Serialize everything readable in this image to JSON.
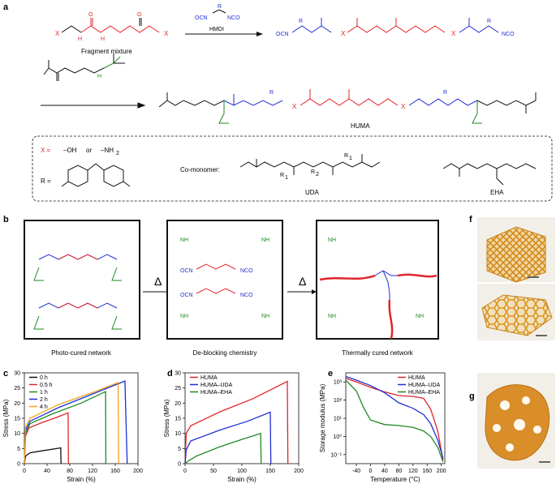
{
  "panel_a": {
    "letter": "a",
    "reagent": "HMDI",
    "reagent_formula": {
      "r": "R",
      "ocn": "OCN",
      "nco": "NCO"
    },
    "fragment_label": "Fragment mixture",
    "x": "X",
    "ocn": "OCN",
    "nco": "NCO",
    "r": "R",
    "n": "N",
    "h": "H",
    "o": "O",
    "huma_label": "HUMA",
    "legend": {
      "x_def_left": "X =",
      "x_def_oh": "–OH",
      "x_def_or": "or",
      "x_def_nh2": "–NH",
      "x_def_nh2_sub": "2",
      "r_def": "R =",
      "comonomer": "Co-monomer:",
      "uda": "UDA",
      "eha": "EHA",
      "r1": "R",
      "r1_sub": "1",
      "r2": "R",
      "r2_sub": "2"
    }
  },
  "panel_b": {
    "letter": "b",
    "captions": [
      "Photo-cured network",
      "De-blocking chemistry",
      "Thermally cured network"
    ],
    "delta": "Δ",
    "nh": "NH",
    "hn": "HN",
    "ocn": "OCN",
    "nco": "NCO"
  },
  "panel_f": {
    "letter": "f"
  },
  "panel_g": {
    "letter": "g"
  },
  "panel_c": {
    "letter": "c",
    "chart_data": {
      "type": "line",
      "xlabel": "Strain (%)",
      "ylabel": "Stress (MPa)",
      "xlim": [
        0,
        200
      ],
      "ylim": [
        0,
        30
      ],
      "xticks": [
        0,
        40,
        80,
        120,
        160,
        200
      ],
      "yticks": [
        0,
        5,
        10,
        15,
        20,
        25,
        30
      ],
      "legend_position": "top-left",
      "series": [
        {
          "name": "0 h",
          "color": "#111111",
          "x": [
            0,
            2,
            10,
            30,
            60,
            64,
            64.5
          ],
          "y": [
            0,
            2.5,
            3.6,
            4.2,
            5.1,
            5.2,
            0
          ]
        },
        {
          "name": "0.5 h",
          "color": "#e0252a",
          "x": [
            0,
            2,
            8,
            30,
            60,
            77,
            77.5
          ],
          "y": [
            0,
            9,
            11.8,
            13.5,
            15.5,
            16.8,
            0
          ]
        },
        {
          "name": "1 h",
          "color": "#1d8a22",
          "x": [
            0,
            2,
            10,
            50,
            100,
            143,
            143.5
          ],
          "y": [
            0,
            10,
            13.2,
            16.5,
            20,
            23.8,
            0
          ]
        },
        {
          "name": "2 h",
          "color": "#1f2fd0",
          "x": [
            0,
            2,
            10,
            60,
            120,
            177,
            181
          ],
          "y": [
            0,
            11,
            14,
            18.5,
            23,
            27.3,
            0
          ]
        },
        {
          "name": "4 h",
          "color": "#f4a21d",
          "x": [
            0,
            2,
            10,
            60,
            120,
            165,
            166
          ],
          "y": [
            0,
            12,
            15,
            19.5,
            23.5,
            26.8,
            0
          ]
        }
      ]
    }
  },
  "panel_d": {
    "letter": "d",
    "chart_data": {
      "type": "line",
      "xlabel": "Strain (%)",
      "ylabel": "Stress (MPa)",
      "xlim": [
        0,
        200
      ],
      "ylim": [
        0,
        30
      ],
      "xticks": [
        0,
        50,
        100,
        150,
        200
      ],
      "yticks": [
        0,
        5,
        10,
        15,
        20,
        25,
        30
      ],
      "legend_position": "top-left",
      "series": [
        {
          "name": "HUMA",
          "color": "#e0252a",
          "x": [
            0,
            2,
            10,
            60,
            120,
            180,
            181
          ],
          "y": [
            0,
            10,
            12.5,
            17,
            21.5,
            27.2,
            0
          ]
        },
        {
          "name": "HUMA–UDA",
          "color": "#1f2fd0",
          "x": [
            0,
            2,
            10,
            60,
            110,
            150,
            151
          ],
          "y": [
            0,
            4.5,
            7.5,
            11,
            14,
            17,
            0
          ]
        },
        {
          "name": "HUMA–EHA",
          "color": "#1d8a22",
          "x": [
            0,
            5,
            20,
            60,
            100,
            133,
            134
          ],
          "y": [
            0,
            0.8,
            2.5,
            5.5,
            8,
            10,
            0
          ]
        }
      ]
    }
  },
  "panel_e": {
    "letter": "e",
    "chart_data": {
      "type": "line",
      "xlabel": "Temperature (°C)",
      "ylabel": "Storage modulus (MPa)",
      "xlim": [
        -70,
        210
      ],
      "ylim_log10": [
        -1.5,
        3.5
      ],
      "xticks": [
        -40,
        0,
        40,
        80,
        120,
        160,
        200
      ],
      "yticks_label": [
        "10⁻¹",
        "10⁰",
        "10¹",
        "10²",
        "10³"
      ],
      "yticks_log10": [
        -1,
        0,
        1,
        2,
        3
      ],
      "legend_position": "top-right",
      "series": [
        {
          "name": "HUMA",
          "color": "#e0252a",
          "x": [
            -70,
            -40,
            0,
            40,
            80,
            120,
            150,
            170,
            190,
            205
          ],
          "y_log10": [
            3.2,
            3.0,
            2.7,
            2.45,
            2.25,
            2.2,
            2.1,
            1.5,
            0.3,
            -1.3
          ]
        },
        {
          "name": "HUMA–UDA",
          "color": "#1f2fd0",
          "x": [
            -70,
            -40,
            0,
            40,
            80,
            120,
            150,
            170,
            190,
            205
          ],
          "y_log10": [
            3.3,
            3.1,
            2.8,
            2.4,
            1.85,
            1.55,
            1.2,
            0.7,
            -0.2,
            -1.2
          ]
        },
        {
          "name": "HUMA–EHA",
          "color": "#1d8a22",
          "x": [
            -70,
            -40,
            -20,
            0,
            40,
            80,
            120,
            150,
            170,
            190,
            205
          ],
          "y_log10": [
            3.1,
            2.5,
            1.6,
            0.9,
            0.65,
            0.6,
            0.5,
            0.3,
            0.0,
            -0.6,
            -1.4
          ]
        }
      ]
    }
  }
}
